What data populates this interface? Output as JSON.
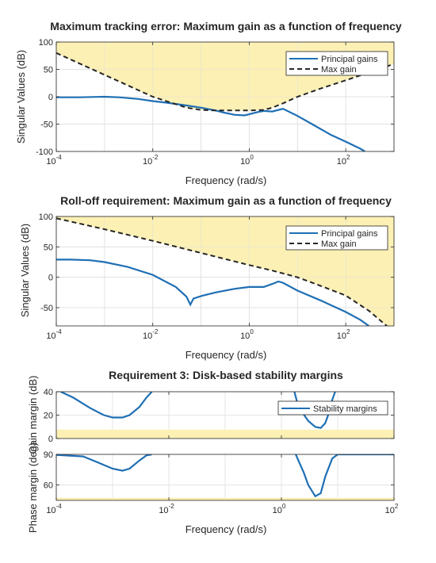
{
  "colors": {
    "gain_line": "#1f6fb4",
    "max_gain_line": "#262626",
    "violation_fill": "#fcf0b4",
    "grid": "#dfdfdf",
    "text": "#262626"
  },
  "chart_data": [
    {
      "type": "line",
      "title": "Maximum tracking error: Maximum gain as a function of frequency",
      "xlabel": "Frequency (rad/s)",
      "ylabel": "Singular Values (dB)",
      "xscale": "log",
      "xlim": [
        0.0001,
        1000
      ],
      "ylim": [
        -100,
        100
      ],
      "xticks": [
        0.0001,
        0.01,
        1,
        100
      ],
      "xtick_labels": [
        {
          "base": "10",
          "exp": "-4"
        },
        {
          "base": "10",
          "exp": "-2"
        },
        {
          "base": "10",
          "exp": "0"
        },
        {
          "base": "10",
          "exp": "2"
        }
      ],
      "yticks": [
        -100,
        -50,
        0,
        50,
        100
      ],
      "ytick_labels": [
        "-100",
        "-50",
        "0",
        "50",
        "100"
      ],
      "grid": true,
      "legend": {
        "position": "top-right",
        "entries": [
          "Principal gains",
          "Max gain"
        ]
      },
      "shaded_region": "above",
      "series": [
        {
          "name": "Principal gains",
          "style": "solid",
          "x": [
            0.0001,
            0.0003,
            0.001,
            0.002,
            0.005,
            0.01,
            0.02,
            0.05,
            0.1,
            0.2,
            0.3,
            0.5,
            0.8,
            1,
            1.5,
            2,
            3,
            5,
            10,
            20,
            50,
            100,
            200,
            250
          ],
          "y": [
            -1,
            -1,
            0,
            -1,
            -4,
            -8,
            -11,
            -16,
            -20,
            -25,
            -29,
            -33,
            -34,
            -32,
            -28,
            -26,
            -27,
            -22,
            -35,
            -50,
            -70,
            -82,
            -95,
            -100
          ]
        },
        {
          "name": "Max gain",
          "style": "dashed",
          "x": [
            0.0001,
            0.001,
            0.01,
            0.05,
            0.1,
            0.2,
            0.5,
            1,
            2,
            3,
            5,
            10,
            30,
            100,
            1000
          ],
          "y": [
            80,
            40,
            0,
            -20,
            -24,
            -25,
            -25,
            -25,
            -24,
            -20,
            -12,
            0,
            15,
            30,
            60
          ]
        }
      ]
    },
    {
      "type": "line",
      "title": "Roll-off requirement: Maximum gain as a function of frequency",
      "xlabel": "Frequency (rad/s)",
      "ylabel": "Singular Values (dB)",
      "xscale": "log",
      "xlim": [
        0.0001,
        1000
      ],
      "ylim": [
        -80,
        100
      ],
      "xticks": [
        0.0001,
        0.01,
        1,
        100
      ],
      "xtick_labels": [
        {
          "base": "10",
          "exp": "-4"
        },
        {
          "base": "10",
          "exp": "-2"
        },
        {
          "base": "10",
          "exp": "0"
        },
        {
          "base": "10",
          "exp": "2"
        }
      ],
      "yticks": [
        -50,
        0,
        50,
        100
      ],
      "ytick_labels": [
        "-50",
        "0",
        "50",
        "100"
      ],
      "grid": true,
      "legend": {
        "position": "top-right",
        "entries": [
          "Principal gains",
          "Max gain"
        ]
      },
      "shaded_region": "above",
      "series": [
        {
          "name": "Principal gains",
          "style": "solid",
          "x": [
            0.0001,
            0.0002,
            0.0005,
            0.001,
            0.003,
            0.01,
            0.03,
            0.05,
            0.06,
            0.07,
            0.1,
            0.2,
            0.5,
            1,
            2,
            3,
            4,
            5,
            10,
            30,
            100,
            200,
            300
          ],
          "y": [
            29,
            29,
            28,
            25,
            17,
            4,
            -16,
            -32,
            -45,
            -35,
            -31,
            -25,
            -19,
            -16,
            -16,
            -11,
            -7,
            -9,
            -22,
            -38,
            -57,
            -70,
            -80
          ]
        },
        {
          "name": "Max gain",
          "style": "dashed",
          "x": [
            0.0001,
            0.001,
            0.01,
            0.1,
            1,
            3,
            10,
            30,
            100,
            300,
            1000
          ],
          "y": [
            97,
            79,
            60,
            40,
            20,
            11,
            0,
            -14,
            -30,
            -55,
            -90
          ]
        }
      ]
    },
    {
      "type": "line",
      "title": "Requirement 3: Disk-based stability margins",
      "xlabel": "Frequency (rad/s)",
      "xscale": "log",
      "xlim": [
        0.0001,
        100
      ],
      "xticks": [
        0.0001,
        0.01,
        1,
        100
      ],
      "xtick_labels": [
        {
          "base": "10",
          "exp": "-4"
        },
        {
          "base": "10",
          "exp": "-2"
        },
        {
          "base": "10",
          "exp": "0"
        },
        {
          "base": "10",
          "exp": "2"
        }
      ],
      "grid": true,
      "legend": {
        "position": "top-right",
        "entries": [
          "Stability margins"
        ]
      },
      "panels": [
        {
          "ylabel": "Gain margin (dB)",
          "ylim": [
            0,
            40
          ],
          "yticks": [
            0,
            20,
            40
          ],
          "ytick_labels": [
            "0",
            "20",
            "40"
          ],
          "shaded_band": [
            0,
            7.6
          ],
          "series": [
            {
              "name": "Stability margins",
              "segments": [
                {
                  "x": [
                    0.00012,
                    0.0002,
                    0.0004,
                    0.0007,
                    0.001,
                    0.0015,
                    0.002,
                    0.003,
                    0.004,
                    0.005
                  ],
                  "y": [
                    40,
                    35,
                    26,
                    20,
                    18,
                    18,
                    20,
                    27,
                    35,
                    40
                  ]
                },
                {
                  "x": [
                    1.7,
                    2,
                    3,
                    4,
                    5,
                    6,
                    7,
                    8,
                    9
                  ],
                  "y": [
                    40,
                    27,
                    15,
                    10,
                    9,
                    13,
                    22,
                    33,
                    40
                  ]
                }
              ]
            }
          ]
        },
        {
          "ylabel": "Phase margin (deg)",
          "ylim": [
            45,
            90
          ],
          "yticks": [
            60,
            90
          ],
          "ytick_labels": [
            "60",
            "90"
          ],
          "shaded_band": [
            45,
            47.5
          ],
          "series": [
            {
              "name": "Stability margins",
              "segments": [
                {
                  "x": [
                    0.0001,
                    0.0003,
                    0.0005,
                    0.001,
                    0.0015,
                    0.002,
                    0.003,
                    0.004,
                    0.005
                  ],
                  "y": [
                    89.5,
                    88,
                    83,
                    76,
                    74,
                    76,
                    84,
                    89,
                    90
                  ]
                },
                {
                  "x": [
                    1.8,
                    2,
                    2.5,
                    3,
                    4,
                    5,
                    6,
                    8,
                    10,
                    100
                  ],
                  "y": [
                    90,
                    84,
                    72,
                    60,
                    49,
                    52,
                    68,
                    86,
                    90,
                    90
                  ]
                }
              ]
            }
          ]
        }
      ]
    }
  ]
}
